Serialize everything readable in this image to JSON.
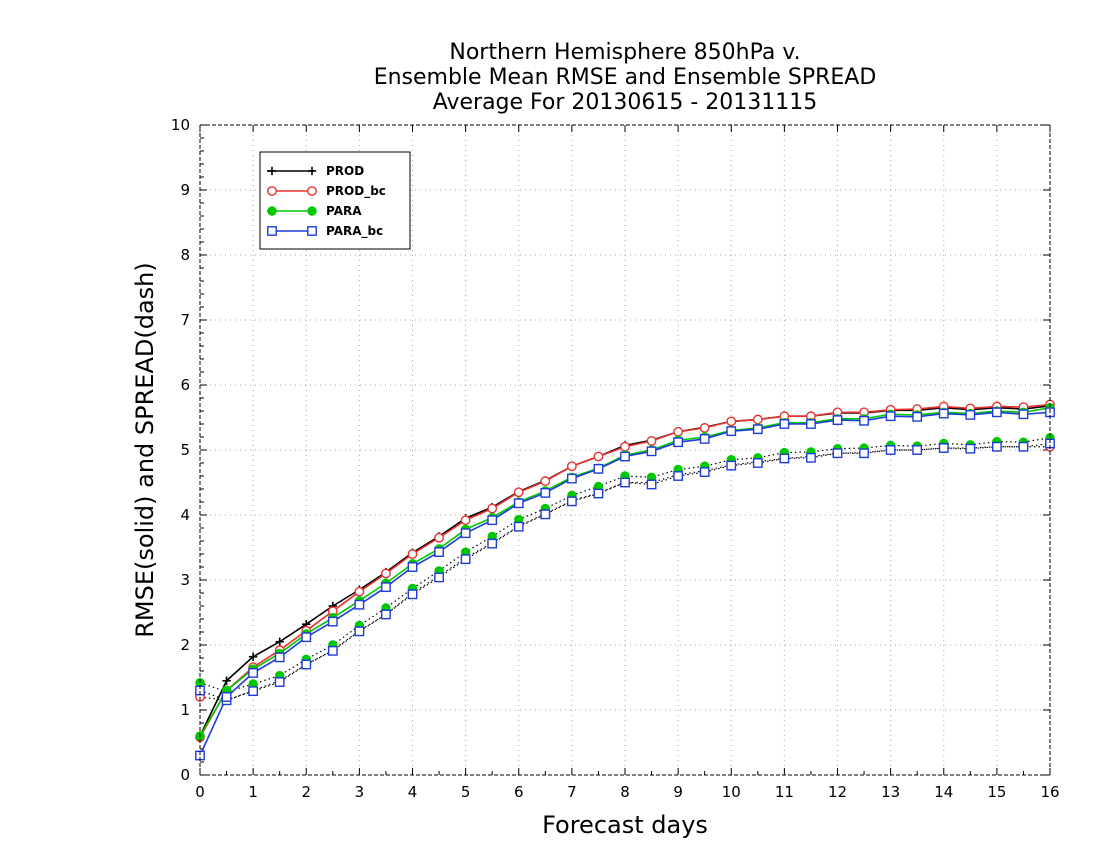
{
  "chart_data": {
    "type": "line",
    "title": [
      "Northern Hemisphere 850hPa v.",
      "Ensemble Mean RMSE and Ensemble SPREAD",
      "Average For 20130615 - 20131115"
    ],
    "xlabel": "Forecast days",
    "ylabel": "RMSE(solid) and SPREAD(dash)",
    "xlim": [
      0,
      16
    ],
    "ylim": [
      0,
      10
    ],
    "x_major_ticks": [
      "0",
      "1",
      "2",
      "3",
      "4",
      "5",
      "6",
      "7",
      "8",
      "9",
      "10",
      "11",
      "12",
      "13",
      "14",
      "15",
      "16"
    ],
    "y_ticks": [
      "0",
      "1",
      "2",
      "3",
      "4",
      "5",
      "6",
      "7",
      "8",
      "9",
      "10"
    ],
    "grid": true,
    "legend_position": "top-left",
    "x": [
      0,
      0.5,
      1,
      1.5,
      2,
      2.5,
      3,
      3.5,
      4,
      4.5,
      5,
      5.5,
      6,
      6.5,
      7,
      7.5,
      8,
      8.5,
      9,
      9.5,
      10,
      10.5,
      11,
      11.5,
      12,
      12.5,
      13,
      13.5,
      14,
      14.5,
      15,
      15.5,
      16
    ],
    "series": [
      {
        "name": "PROD",
        "color": "#000000",
        "marker": "plus",
        "rmse": [
          0.6,
          1.45,
          1.82,
          2.05,
          2.32,
          2.6,
          2.85,
          3.12,
          3.42,
          3.67,
          3.95,
          4.12,
          4.36,
          4.53,
          4.75,
          4.9,
          5.07,
          5.15,
          5.28,
          5.35,
          5.44,
          5.47,
          5.52,
          5.52,
          5.57,
          5.57,
          5.61,
          5.61,
          5.65,
          5.62,
          5.65,
          5.63,
          5.68
        ],
        "spread": null
      },
      {
        "name": "PROD_bc",
        "color": "#e8322d",
        "marker": "circle-open",
        "rmse": [
          0.58,
          1.3,
          1.66,
          1.92,
          2.22,
          2.52,
          2.82,
          3.1,
          3.4,
          3.65,
          3.92,
          4.1,
          4.35,
          4.52,
          4.75,
          4.9,
          5.05,
          5.14,
          5.28,
          5.34,
          5.44,
          5.47,
          5.52,
          5.52,
          5.58,
          5.58,
          5.62,
          5.63,
          5.67,
          5.64,
          5.67,
          5.66,
          5.7
        ],
        "spread": [
          1.2,
          1.15,
          1.3,
          1.45,
          1.7,
          1.92,
          2.22,
          2.47,
          2.8,
          3.06,
          3.34,
          3.57,
          3.83,
          4.02,
          4.22,
          4.34,
          4.5,
          4.5,
          4.62,
          4.68,
          4.77,
          4.82,
          4.87,
          4.9,
          4.95,
          4.96,
          5,
          5,
          5.03,
          5.03,
          5.05,
          5.05,
          5.05
        ]
      },
      {
        "name": "PARA",
        "color": "#00c800",
        "marker": "circle-filled",
        "rmse": [
          0.6,
          1.3,
          1.63,
          1.87,
          2.17,
          2.42,
          2.68,
          2.95,
          3.25,
          3.48,
          3.78,
          3.96,
          4.2,
          4.37,
          4.58,
          4.72,
          4.92,
          5,
          5.15,
          5.2,
          5.3,
          5.34,
          5.42,
          5.42,
          5.48,
          5.48,
          5.55,
          5.54,
          5.58,
          5.56,
          5.6,
          5.58,
          5.65
        ],
        "spread": [
          1.42,
          1.28,
          1.4,
          1.53,
          1.78,
          2.0,
          2.3,
          2.57,
          2.87,
          3.14,
          3.43,
          3.67,
          3.93,
          4.1,
          4.3,
          4.44,
          4.6,
          4.58,
          4.7,
          4.75,
          4.85,
          4.88,
          4.96,
          4.97,
          5.02,
          5.03,
          5.07,
          5.06,
          5.1,
          5.08,
          5.13,
          5.12,
          5.19
        ]
      },
      {
        "name": "PARA_bc",
        "color": "#1e3cdc",
        "marker": "square-open",
        "rmse": [
          0.3,
          1.2,
          1.57,
          1.81,
          2.12,
          2.36,
          2.62,
          2.89,
          3.2,
          3.43,
          3.72,
          3.92,
          4.18,
          4.34,
          4.56,
          4.71,
          4.9,
          4.98,
          5.12,
          5.17,
          5.29,
          5.32,
          5.4,
          5.4,
          5.46,
          5.45,
          5.52,
          5.51,
          5.56,
          5.54,
          5.58,
          5.55,
          5.58
        ],
        "spread": [
          1.3,
          1.15,
          1.29,
          1.43,
          1.7,
          1.91,
          2.21,
          2.47,
          2.78,
          3.04,
          3.32,
          3.56,
          3.82,
          4.01,
          4.21,
          4.33,
          4.5,
          4.47,
          4.6,
          4.66,
          4.76,
          4.8,
          4.87,
          4.88,
          4.95,
          4.95,
          5,
          5,
          5.03,
          5.02,
          5.05,
          5.05,
          5.1
        ]
      }
    ]
  }
}
